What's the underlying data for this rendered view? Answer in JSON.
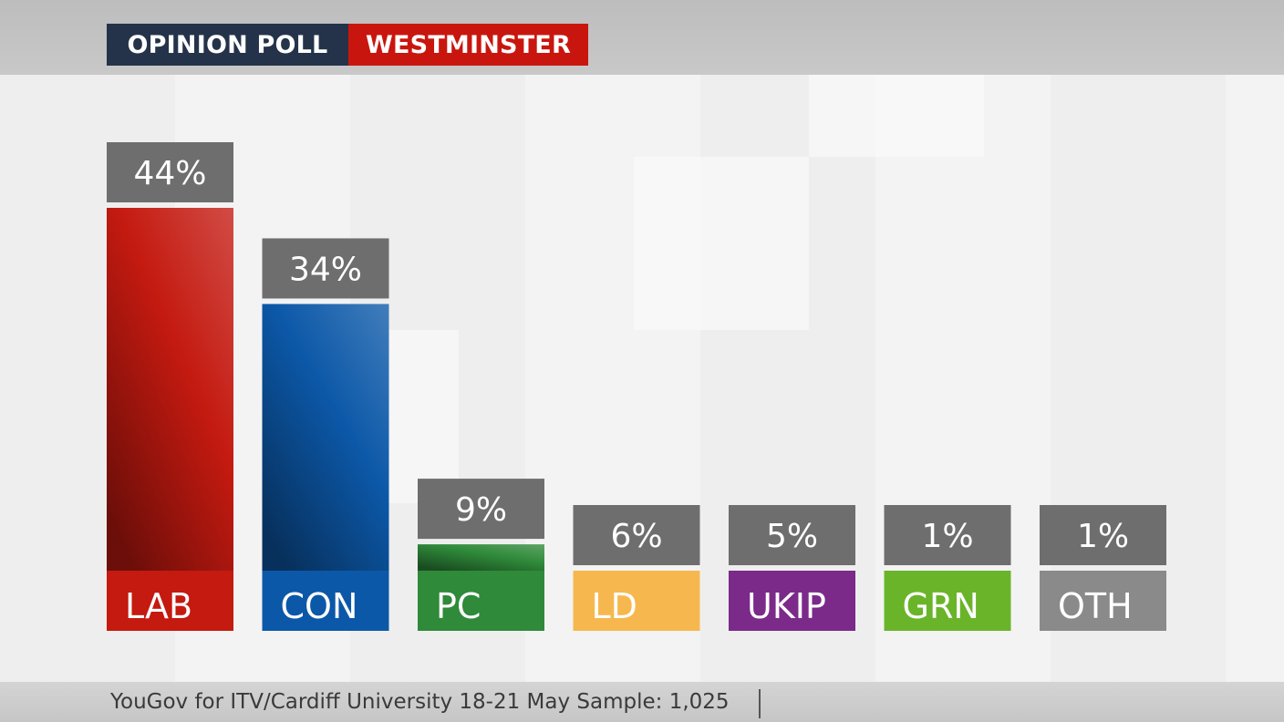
{
  "header": {
    "left_label": "OPINION POLL",
    "right_label": "WESTMINSTER"
  },
  "footer": {
    "source": "YouGov for ITV/Cardiff University 18-21 May Sample: 1,025"
  },
  "colors": {
    "label_box": "#6e6e6e",
    "header_left": "#24334a",
    "header_right": "#c8160e"
  },
  "chart_data": {
    "type": "bar",
    "title": "",
    "xlabel": "",
    "ylabel": "",
    "ylim": [
      0,
      44
    ],
    "grid": false,
    "legend": "none",
    "categories": [
      "LAB",
      "CON",
      "PC",
      "LD",
      "UKIP",
      "GRN",
      "OTH"
    ],
    "values": [
      44,
      34,
      9,
      6,
      5,
      1,
      1
    ],
    "value_labels": [
      "44%",
      "34%",
      "9%",
      "6%",
      "5%",
      "1%",
      "1%"
    ],
    "colors": [
      "#c41a10",
      "#0c58a8",
      "#2f8a3a",
      "#f6b84e",
      "#7b2a8a",
      "#6ab42a",
      "#8a8a8a"
    ]
  }
}
